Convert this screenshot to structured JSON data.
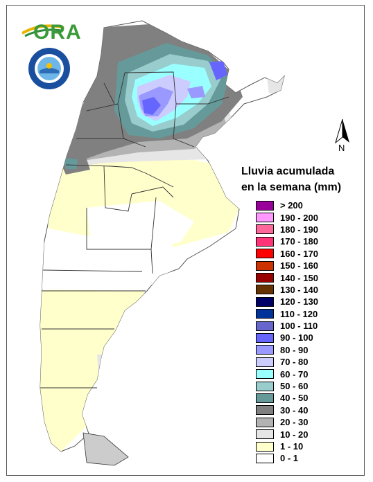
{
  "logo": {
    "text": "ORA"
  },
  "seal": {
    "text": "SERVICIO METEOROLÓGICO NACIONAL"
  },
  "compass": {
    "label": "N"
  },
  "legend": {
    "title_line1": "Lluvia acumulada",
    "title_line2": "en la semana (mm)",
    "items": [
      {
        "label": "> 200",
        "color": "#990099"
      },
      {
        "label": "190 - 200",
        "color": "#ff99ff"
      },
      {
        "label": "180 - 190",
        "color": "#ff6699"
      },
      {
        "label": "170 - 180",
        "color": "#ff3377"
      },
      {
        "label": "160 - 170",
        "color": "#ff0000"
      },
      {
        "label": "150 - 160",
        "color": "#cc3300"
      },
      {
        "label": "140 - 150",
        "color": "#990000"
      },
      {
        "label": "130 - 140",
        "color": "#663300"
      },
      {
        "label": "120 - 130",
        "color": "#000066"
      },
      {
        "label": "110 - 120",
        "color": "#003399"
      },
      {
        "label": "100 - 110",
        "color": "#6666cc"
      },
      {
        "label": "90 - 100",
        "color": "#6666ff"
      },
      {
        "label": "80 - 90",
        "color": "#9999ff"
      },
      {
        "label": "70 - 80",
        "color": "#ccccff"
      },
      {
        "label": "60 - 70",
        "color": "#99ffff"
      },
      {
        "label": "50 - 60",
        "color": "#99cccc"
      },
      {
        "label": "40 - 50",
        "color": "#669999"
      },
      {
        "label": "30 - 40",
        "color": "#808080"
      },
      {
        "label": "20 - 30",
        "color": "#b3b3b3"
      },
      {
        "label": "10 - 20",
        "color": "#e6e6e6"
      },
      {
        "label": "1 - 10",
        "color": "#ffffcc"
      },
      {
        "label": "0 - 1",
        "color": "#ffffff"
      }
    ]
  }
}
